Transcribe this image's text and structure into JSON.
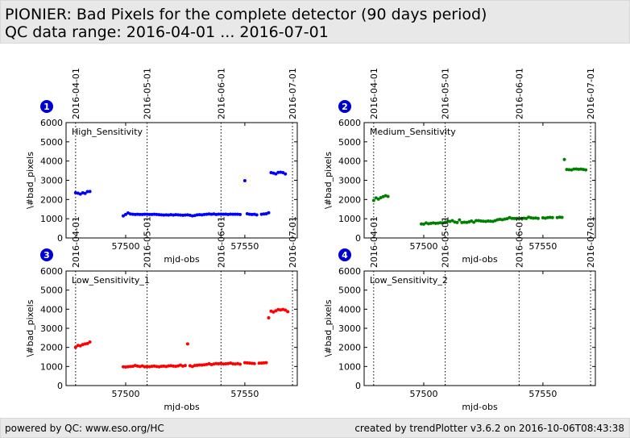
{
  "header": {
    "title": "PIONIER: Bad Pixels for the complete detector (90 days period)",
    "subtitle": "QC data range: 2016-04-01 ... 2016-07-01"
  },
  "footer": {
    "left": "powered by QC: www.eso.org/HC",
    "right": "created by trendPlotter v3.6.2 on 2016-10-06T08:43:38"
  },
  "chart_data": [
    {
      "type": "scatter",
      "panel_number": "1",
      "label": "High_Sensitivity",
      "color": "#0000ff",
      "xlabel": "mjd-obs",
      "ylabel": "\\#bad_pixels",
      "xlim": [
        57475,
        57572
      ],
      "ylim": [
        0,
        6000
      ],
      "xticks": [
        57500,
        57550
      ],
      "yticks": [
        0,
        1000,
        2000,
        3000,
        4000,
        5000,
        6000
      ],
      "date_markers": [
        {
          "label": "2016-04-01",
          "x": 57479
        },
        {
          "label": "2016-05-01",
          "x": 57509
        },
        {
          "label": "2016-06-01",
          "x": 57540
        },
        {
          "label": "2016-07-01",
          "x": 57570
        }
      ],
      "x": [
        57479,
        57480,
        57481,
        57482,
        57483,
        57484,
        57485,
        57499,
        57500,
        57501,
        57502,
        57503,
        57504,
        57505,
        57506,
        57507,
        57508,
        57509,
        57510,
        57511,
        57512,
        57513,
        57514,
        57515,
        57516,
        57517,
        57518,
        57519,
        57520,
        57521,
        57522,
        57523,
        57524,
        57525,
        57526,
        57527,
        57528,
        57529,
        57530,
        57531,
        57532,
        57533,
        57534,
        57535,
        57536,
        57537,
        57538,
        57539,
        57540,
        57541,
        57542,
        57543,
        57544,
        57545,
        57546,
        57547,
        57548,
        57550,
        57551,
        57552,
        57553,
        57554,
        57555,
        57557,
        57558,
        57559,
        57560,
        57561,
        57562,
        57563,
        57564,
        57565,
        57566,
        57567
      ],
      "y": [
        2350,
        2330,
        2280,
        2350,
        2320,
        2410,
        2420,
        1150,
        1220,
        1300,
        1250,
        1230,
        1220,
        1230,
        1220,
        1220,
        1230,
        1230,
        1220,
        1220,
        1230,
        1220,
        1210,
        1200,
        1190,
        1200,
        1190,
        1210,
        1190,
        1210,
        1200,
        1190,
        1180,
        1190,
        1200,
        1180,
        1150,
        1170,
        1200,
        1210,
        1200,
        1220,
        1230,
        1250,
        1230,
        1250,
        1220,
        1240,
        1240,
        1230,
        1240,
        1220,
        1240,
        1230,
        1230,
        1230,
        1220,
        2980,
        1260,
        1230,
        1220,
        1230,
        1200,
        1230,
        1250,
        1260,
        1310,
        3400,
        3370,
        3330,
        3410,
        3420,
        3400,
        3330
      ]
    },
    {
      "type": "scatter",
      "panel_number": "2",
      "label": "Medium_Sensitivity",
      "color": "#008000",
      "xlabel": "mjd-obs",
      "ylabel": "\\#bad_pixels",
      "xlim": [
        57475,
        57572
      ],
      "ylim": [
        0,
        6000
      ],
      "xticks": [
        57500,
        57550
      ],
      "yticks": [
        0,
        1000,
        2000,
        3000,
        4000,
        5000,
        6000
      ],
      "date_markers": [
        {
          "label": "2016-04-01",
          "x": 57479
        },
        {
          "label": "2016-05-01",
          "x": 57509
        },
        {
          "label": "2016-06-01",
          "x": 57540
        },
        {
          "label": "2016-07-01",
          "x": 57570
        }
      ],
      "x": [
        57479,
        57480,
        57481,
        57482,
        57483,
        57484,
        57485,
        57499,
        57500,
        57501,
        57502,
        57503,
        57504,
        57505,
        57506,
        57507,
        57508,
        57509,
        57510,
        57511,
        57512,
        57513,
        57514,
        57515,
        57516,
        57517,
        57518,
        57519,
        57520,
        57521,
        57522,
        57523,
        57524,
        57525,
        57526,
        57527,
        57528,
        57529,
        57530,
        57531,
        57532,
        57533,
        57534,
        57535,
        57536,
        57537,
        57538,
        57539,
        57540,
        57541,
        57542,
        57543,
        57544,
        57545,
        57546,
        57547,
        57548,
        57550,
        57551,
        57552,
        57553,
        57554,
        57556,
        57557,
        57558,
        57559,
        57560,
        57561,
        57562,
        57563,
        57564,
        57565,
        57566,
        57567,
        57568
      ],
      "y": [
        1950,
        2080,
        2020,
        2100,
        2150,
        2200,
        2160,
        730,
        720,
        780,
        740,
        760,
        780,
        760,
        770,
        790,
        780,
        800,
        860,
        860,
        900,
        830,
        800,
        940,
        800,
        820,
        810,
        840,
        880,
        820,
        900,
        900,
        880,
        870,
        860,
        880,
        870,
        860,
        900,
        950,
        970,
        950,
        980,
        1000,
        1060,
        1020,
        1010,
        1020,
        1010,
        1020,
        1030,
        1010,
        1080,
        1050,
        1030,
        1040,
        1020,
        1050,
        1030,
        1060,
        1070,
        1060,
        1060,
        1080,
        1070,
        4080,
        3560,
        3550,
        3540,
        3580,
        3590,
        3570,
        3580,
        3560,
        3540
      ]
    },
    {
      "type": "scatter",
      "panel_number": "3",
      "label": "Low_Sensitivity_1",
      "color": "#ff0000",
      "xlabel": "mjd-obs",
      "ylabel": "\\#bad_pixels",
      "xlim": [
        57475,
        57572
      ],
      "ylim": [
        0,
        6000
      ],
      "xticks": [
        57500,
        57550
      ],
      "yticks": [
        0,
        1000,
        2000,
        3000,
        4000,
        5000,
        6000
      ],
      "date_markers": [
        {
          "label": "2016-04-01",
          "x": 57479
        },
        {
          "label": "2016-05-01",
          "x": 57509
        },
        {
          "label": "2016-06-01",
          "x": 57540
        },
        {
          "label": "2016-07-01",
          "x": 57570
        }
      ],
      "x": [
        57479,
        57480,
        57481,
        57482,
        57483,
        57484,
        57485,
        57499,
        57500,
        57501,
        57502,
        57503,
        57504,
        57505,
        57506,
        57507,
        57508,
        57509,
        57510,
        57511,
        57512,
        57513,
        57514,
        57515,
        57516,
        57517,
        57518,
        57519,
        57520,
        57521,
        57522,
        57523,
        57524,
        57525,
        57526,
        57527,
        57528,
        57529,
        57530,
        57531,
        57532,
        57533,
        57534,
        57535,
        57536,
        57537,
        57538,
        57539,
        57540,
        57541,
        57542,
        57543,
        57544,
        57545,
        57546,
        57547,
        57548,
        57550,
        57551,
        57552,
        57553,
        57554,
        57556,
        57557,
        57558,
        57559,
        57560,
        57561,
        57562,
        57563,
        57564,
        57565,
        57566,
        57567,
        57568
      ],
      "y": [
        2000,
        2100,
        2080,
        2150,
        2180,
        2200,
        2280,
        980,
        970,
        990,
        1000,
        1010,
        1050,
        1020,
        1000,
        1030,
        980,
        1000,
        990,
        1010,
        1020,
        1000,
        980,
        1010,
        1020,
        1000,
        1030,
        1040,
        1020,
        1010,
        1030,
        1070,
        1020,
        1050,
        2180,
        1040,
        1000,
        1050,
        1060,
        1080,
        1070,
        1090,
        1110,
        1140,
        1100,
        1130,
        1150,
        1140,
        1160,
        1130,
        1140,
        1150,
        1180,
        1140,
        1130,
        1150,
        1120,
        1200,
        1190,
        1180,
        1160,
        1150,
        1170,
        1180,
        1190,
        1200,
        3550,
        3900,
        3850,
        3920,
        3980,
        3960,
        3990,
        3950,
        3870
      ]
    },
    {
      "type": "scatter",
      "panel_number": "4",
      "label": "Low_Sensitivity_2",
      "color": "#000000",
      "xlabel": "mjd-obs",
      "ylabel": "\\#bad_pixels",
      "xlim": [
        57475,
        57572
      ],
      "ylim": [
        0,
        6000
      ],
      "xticks": [
        57500,
        57550
      ],
      "yticks": [
        0,
        1000,
        2000,
        3000,
        4000,
        5000,
        6000
      ],
      "date_markers": [
        {
          "label": "2016-04-01",
          "x": 57479
        },
        {
          "label": "2016-05-01",
          "x": 57509
        },
        {
          "label": "2016-06-01",
          "x": 57540
        },
        {
          "label": "2016-07-01",
          "x": 57570
        }
      ],
      "x": [],
      "y": []
    }
  ]
}
